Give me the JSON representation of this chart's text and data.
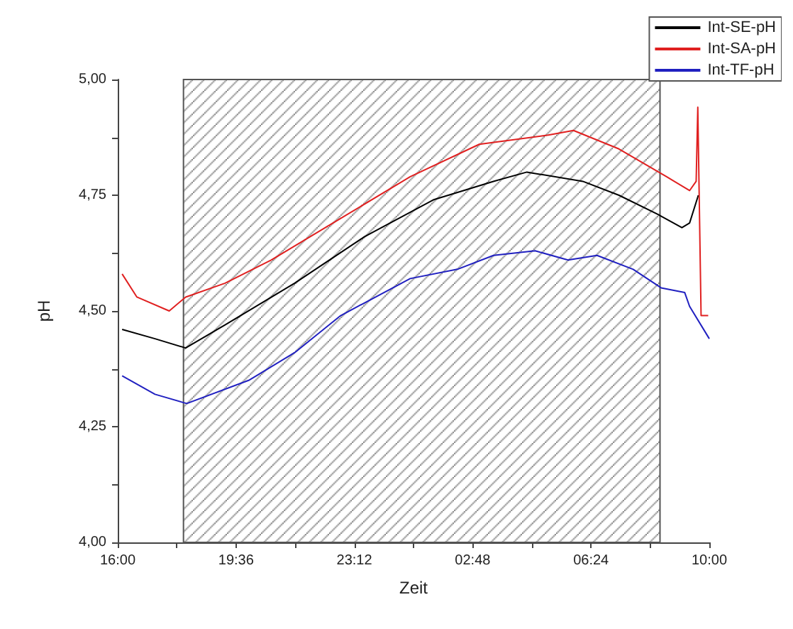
{
  "chart_data": {
    "type": "line",
    "xlabel": "Zeit",
    "ylabel": "pH",
    "xlim": [
      "2000-01-01T16:00",
      "2000-01-02T10:00"
    ],
    "ylim": [
      4,
      5
    ],
    "xticks": [
      {
        "value": "2000-01-01T16:00",
        "label": "16:00"
      },
      {
        "value": "2000-01-01T17:48",
        "label": null
      },
      {
        "value": "2000-01-01T19:36",
        "label": "19:36"
      },
      {
        "value": "2000-01-01T21:24",
        "label": null
      },
      {
        "value": "2000-01-01T23:12",
        "label": "23:12"
      },
      {
        "value": "2000-01-02T01:00",
        "label": null
      },
      {
        "value": "2000-01-02T02:48",
        "label": "02:48"
      },
      {
        "value": "2000-01-02T04:36",
        "label": null
      },
      {
        "value": "2000-01-02T06:24",
        "label": "06:24"
      },
      {
        "value": "2000-01-02T08:12",
        "label": null
      },
      {
        "value": "2000-01-02T10:00",
        "label": "10:00"
      }
    ],
    "yticks": [
      {
        "value": 4,
        "label": "4,00"
      },
      {
        "value": 4.125,
        "label": null
      },
      {
        "value": 4.25,
        "label": "4,25"
      },
      {
        "value": 4.375,
        "label": null
      },
      {
        "value": 4.5,
        "label": "4,50"
      },
      {
        "value": 4.625,
        "label": null
      },
      {
        "value": 4.75,
        "label": "4,75"
      },
      {
        "value": 4.875,
        "label": null
      },
      {
        "value": 5,
        "label": "5,00"
      }
    ],
    "grid": false,
    "legend": "top right",
    "line_style": "solid",
    "marker": "none",
    "bands": [
      {
        "axis": "x",
        "from": "2000-01-01T18:00",
        "to": "2000-01-02T08:30",
        "color": "#555555"
      }
    ],
    "series": [
      {
        "name": "Int-SE-pH",
        "color": "#000000",
        "x": [
          "2000-01-01T16:08",
          "2000-01-01T17:08",
          "2000-01-01T18:04",
          "2000-01-01T19:16",
          "2000-01-01T21:23",
          "2000-01-01T23:30",
          "2000-01-02T01:36",
          "2000-01-02T03:26",
          "2000-01-02T04:27",
          "2000-01-02T06:09",
          "2000-01-02T07:15",
          "2000-01-02T08:24",
          "2000-01-02T09:10",
          "2000-01-02T09:24",
          "2000-01-02T09:40"
        ],
        "values": [
          4.46,
          4.44,
          4.42,
          4.47,
          4.56,
          4.66,
          4.74,
          4.78,
          4.8,
          4.78,
          4.75,
          4.71,
          4.68,
          4.69,
          4.75
        ]
      },
      {
        "name": "Int-SA-pH",
        "color": "#e02020",
        "x": [
          "2000-01-01T16:08",
          "2000-01-01T16:35",
          "2000-01-01T17:34",
          "2000-01-01T18:04",
          "2000-01-01T19:16",
          "2000-01-01T20:40",
          "2000-01-01T22:47",
          "2000-01-02T00:54",
          "2000-01-02T03:00",
          "2000-01-02T05:06",
          "2000-01-02T05:52",
          "2000-01-02T07:15",
          "2000-01-02T08:42",
          "2000-01-02T09:24",
          "2000-01-02T09:36",
          "2000-01-02T09:39",
          "2000-01-02T09:45",
          "2000-01-02T09:58"
        ],
        "values": [
          4.58,
          4.53,
          4.5,
          4.53,
          4.56,
          4.61,
          4.7,
          4.79,
          4.86,
          4.88,
          4.89,
          4.85,
          4.79,
          4.76,
          4.78,
          4.94,
          4.49,
          4.49
        ]
      },
      {
        "name": "Int-TF-pH",
        "color": "#2020c0",
        "x": [
          "2000-01-01T16:08",
          "2000-01-01T17:08",
          "2000-01-01T18:06",
          "2000-01-01T19:59",
          "2000-01-01T21:23",
          "2000-01-01T22:47",
          "2000-01-02T00:54",
          "2000-01-02T02:20",
          "2000-01-02T03:26",
          "2000-01-02T04:42",
          "2000-01-02T05:42",
          "2000-01-02T06:35",
          "2000-01-02T07:41",
          "2000-01-02T08:32",
          "2000-01-02T09:15",
          "2000-01-02T09:24",
          "2000-01-02T10:00"
        ],
        "values": [
          4.36,
          4.32,
          4.3,
          4.35,
          4.41,
          4.49,
          4.57,
          4.59,
          4.62,
          4.63,
          4.61,
          4.62,
          4.59,
          4.55,
          4.54,
          4.51,
          4.44
        ]
      }
    ]
  }
}
